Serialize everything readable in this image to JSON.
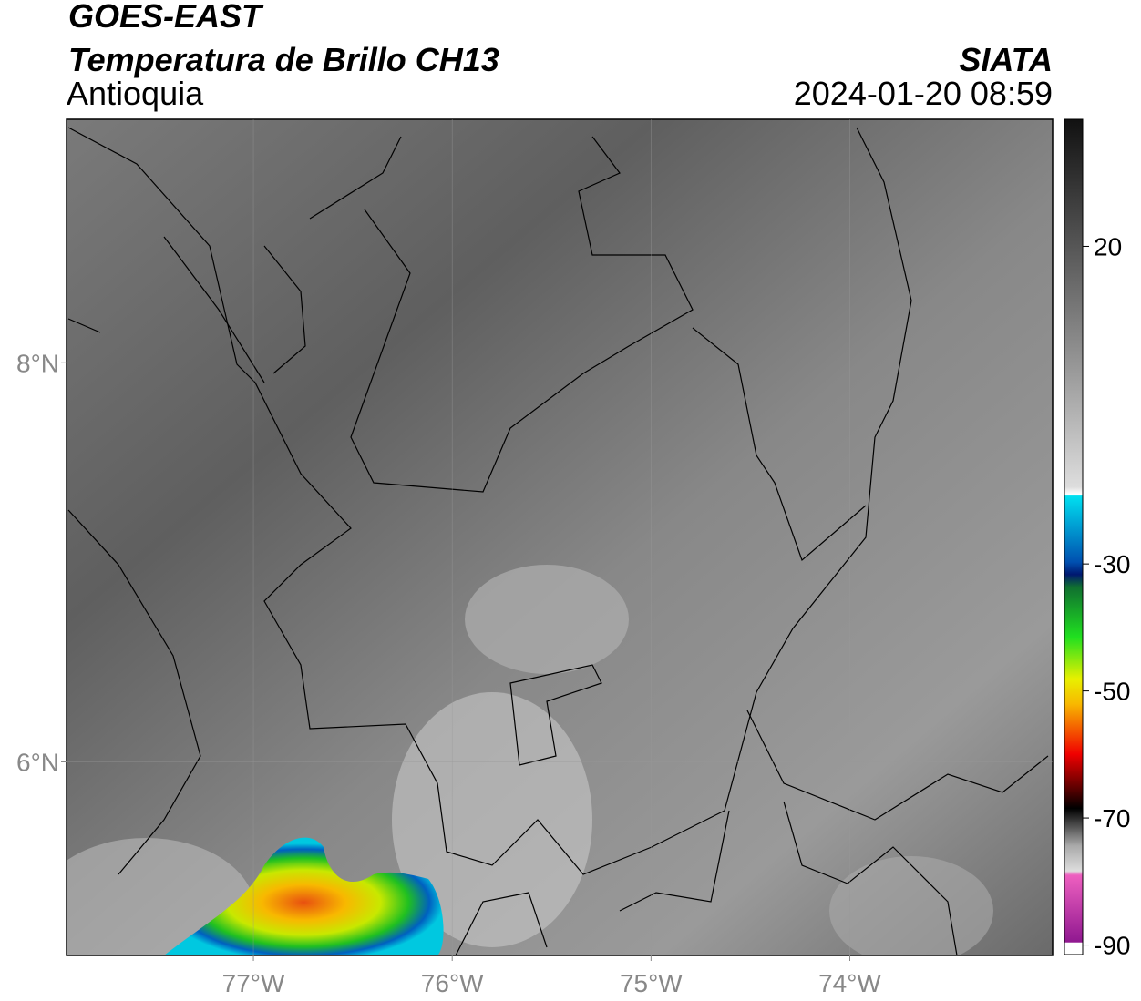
{
  "header": {
    "satellite": "GOES-EAST",
    "product": "Temperatura de Brillo CH13",
    "region": "Antioquia",
    "source": "SIATA",
    "datetime": "2024-01-20 08:59"
  },
  "map": {
    "xlim": [
      -77.94,
      -72.98
    ],
    "ylim": [
      5.03,
      9.22
    ],
    "xticks": [
      {
        "value": -77,
        "label": "77°W"
      },
      {
        "value": -76,
        "label": "76°W"
      },
      {
        "value": -75,
        "label": "75°W"
      },
      {
        "value": -74,
        "label": "74°W"
      }
    ],
    "yticks": [
      {
        "value": 6,
        "label": "6°N"
      },
      {
        "value": 8,
        "label": "8°N"
      }
    ],
    "grid": true
  },
  "colorbar": {
    "lim": [
      -91.5,
      40
    ],
    "ticks": [
      20,
      -30,
      -50,
      -70,
      -90
    ]
  }
}
